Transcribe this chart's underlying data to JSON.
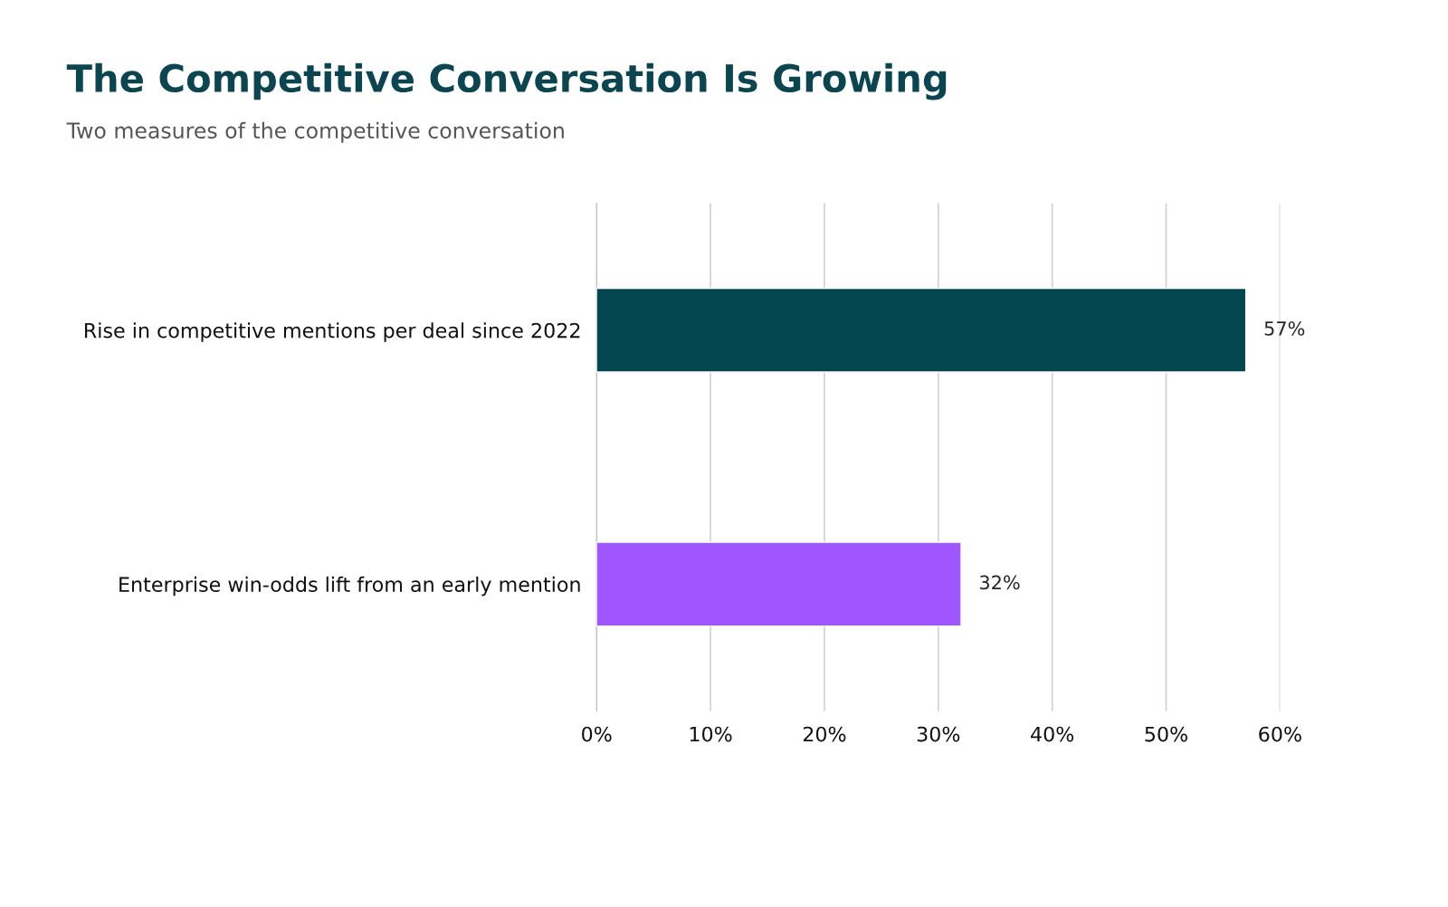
{
  "chart_data": {
    "type": "bar",
    "orientation": "horizontal",
    "title": "The Competitive Conversation Is Growing",
    "subtitle": "Two measures of the competitive conversation",
    "categories": [
      "Rise in competitive mentions per deal since 2022",
      "Enterprise win-odds lift from an early mention"
    ],
    "values": [
      57,
      32
    ],
    "colors": [
      "#03464f",
      "#a055ff"
    ],
    "value_labels": [
      "57%",
      "32%"
    ],
    "xlim": [
      0,
      60
    ],
    "xticks": [
      {
        "value": 0,
        "label": "0%"
      },
      {
        "value": 10,
        "label": "10%"
      },
      {
        "value": 20,
        "label": "20%"
      },
      {
        "value": 30,
        "label": "30%"
      },
      {
        "value": 40,
        "label": "40%"
      },
      {
        "value": 50,
        "label": "50%"
      },
      {
        "value": 60,
        "label": "60%"
      }
    ],
    "grid": "x"
  }
}
